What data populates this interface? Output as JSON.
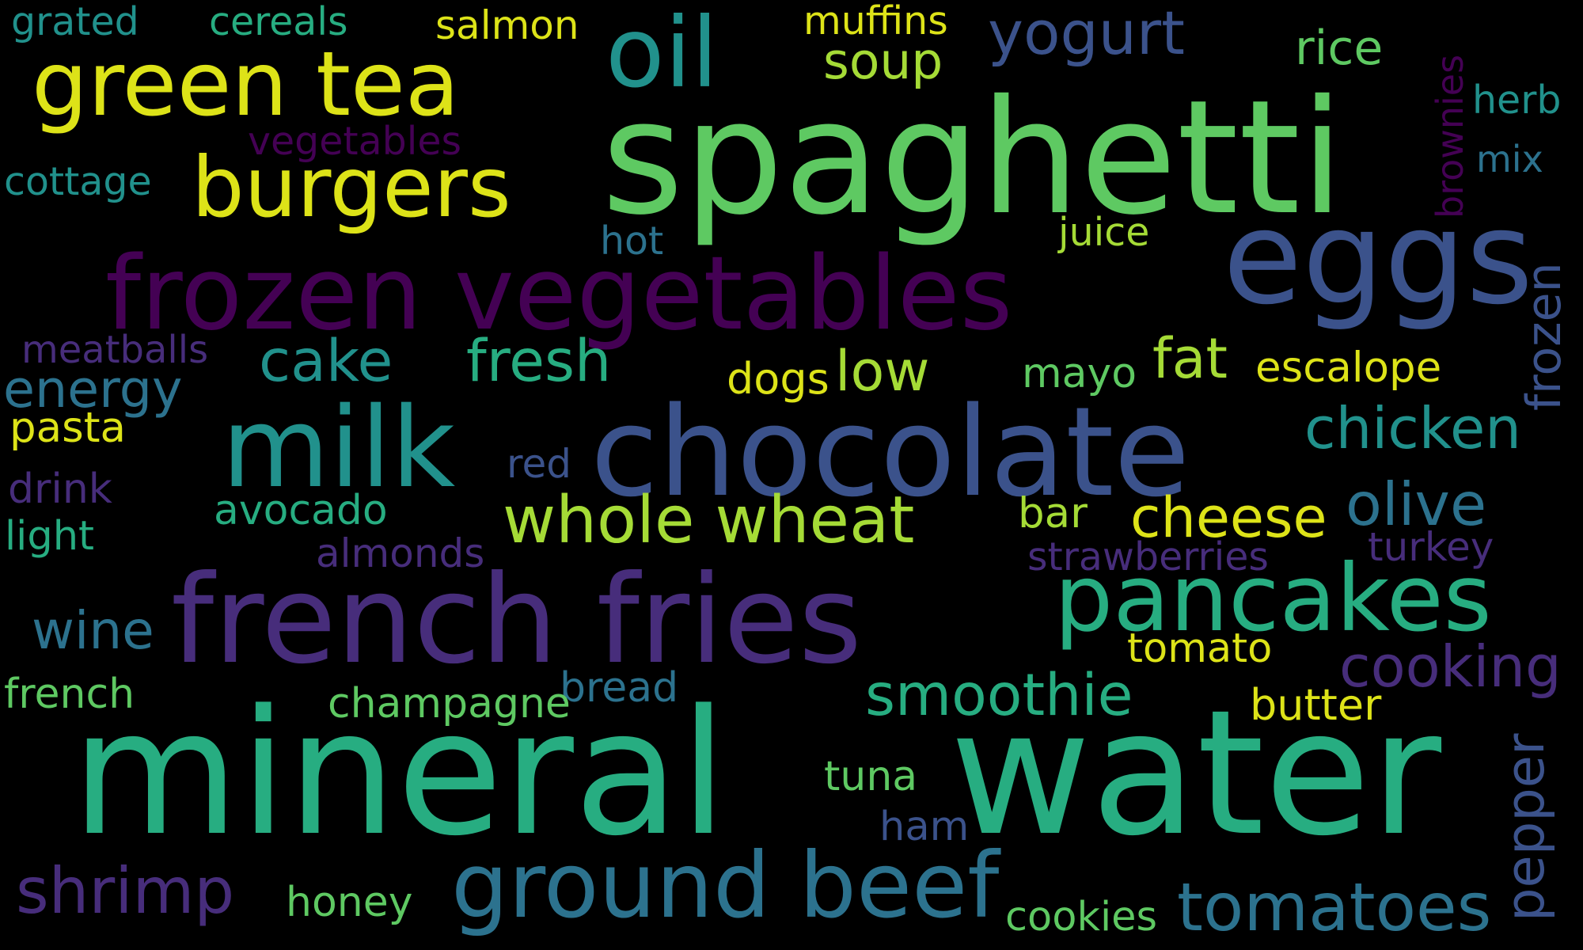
{
  "colors": {
    "background": "#000000",
    "palette": {
      "yellow": "#dde318",
      "lime": "#a5db36",
      "green": "#5ec962",
      "teal_green": "#27ad81",
      "teal": "#21918c",
      "blue_teal": "#2c728e",
      "blue": "#3b528b",
      "indigo": "#472d7b",
      "purple": "#440154"
    }
  },
  "words": [
    {
      "text": "grated",
      "color": "#21918c"
    },
    {
      "text": "cereals",
      "color": "#27ad81"
    },
    {
      "text": "salmon",
      "color": "#dde318"
    },
    {
      "text": "muffins",
      "color": "#dde318"
    },
    {
      "text": "soup",
      "color": "#a5db36"
    },
    {
      "text": "yogurt",
      "color": "#3b528b"
    },
    {
      "text": "rice",
      "color": "#5ec962"
    },
    {
      "text": "brownies",
      "color": "#440154"
    },
    {
      "text": "herb",
      "color": "#21918c"
    },
    {
      "text": "green tea",
      "color": "#dde318"
    },
    {
      "text": "oil",
      "color": "#21918c"
    },
    {
      "text": "spaghetti",
      "color": "#5ec962"
    },
    {
      "text": "mix",
      "color": "#2c728e"
    },
    {
      "text": "vegetables",
      "color": "#440154"
    },
    {
      "text": "cottage",
      "color": "#21918c"
    },
    {
      "text": "burgers",
      "color": "#dde318"
    },
    {
      "text": "hot",
      "color": "#2c728e"
    },
    {
      "text": "juice",
      "color": "#a5db36"
    },
    {
      "text": "eggs",
      "color": "#3b528b"
    },
    {
      "text": "frozen",
      "color": "#3b528b"
    },
    {
      "text": "frozen vegetables",
      "color": "#440154"
    },
    {
      "text": "meatballs",
      "color": "#472d7b"
    },
    {
      "text": "cake",
      "color": "#21918c"
    },
    {
      "text": "fresh",
      "color": "#27ad81"
    },
    {
      "text": "low",
      "color": "#a5db36"
    },
    {
      "text": "dogs",
      "color": "#dde318"
    },
    {
      "text": "mayo",
      "color": "#5ec962"
    },
    {
      "text": "fat",
      "color": "#a5db36"
    },
    {
      "text": "escalope",
      "color": "#dde318"
    },
    {
      "text": "energy",
      "color": "#2c728e"
    },
    {
      "text": "pasta",
      "color": "#dde318"
    },
    {
      "text": "milk",
      "color": "#21918c"
    },
    {
      "text": "chocolate",
      "color": "#3b528b"
    },
    {
      "text": "chicken",
      "color": "#21918c"
    },
    {
      "text": "red",
      "color": "#3b528b"
    },
    {
      "text": "drink",
      "color": "#472d7b"
    },
    {
      "text": "olive",
      "color": "#2c728e"
    },
    {
      "text": "avocado",
      "color": "#27ad81"
    },
    {
      "text": "whole wheat",
      "color": "#a5db36"
    },
    {
      "text": "bar",
      "color": "#a5db36"
    },
    {
      "text": "cheese",
      "color": "#dde318"
    },
    {
      "text": "light",
      "color": "#27ad81"
    },
    {
      "text": "almonds",
      "color": "#472d7b"
    },
    {
      "text": "strawberries",
      "color": "#472d7b"
    },
    {
      "text": "turkey",
      "color": "#472d7b"
    },
    {
      "text": "french fries",
      "color": "#472d7b"
    },
    {
      "text": "pancakes",
      "color": "#27ad81"
    },
    {
      "text": "wine",
      "color": "#2c728e"
    },
    {
      "text": "tomato",
      "color": "#dde318"
    },
    {
      "text": "cooking",
      "color": "#472d7b"
    },
    {
      "text": "french",
      "color": "#5ec962"
    },
    {
      "text": "bread",
      "color": "#2c728e"
    },
    {
      "text": "champagne",
      "color": "#5ec962"
    },
    {
      "text": "smoothie",
      "color": "#27ad81"
    },
    {
      "text": "butter",
      "color": "#dde318"
    },
    {
      "text": "pepper",
      "color": "#3b528b"
    },
    {
      "text": "mineral",
      "color": "#27ad81"
    },
    {
      "text": "water",
      "color": "#27ad81"
    },
    {
      "text": "tuna",
      "color": "#5ec962"
    },
    {
      "text": "ham",
      "color": "#3b528b"
    },
    {
      "text": "shrimp",
      "color": "#472d7b"
    },
    {
      "text": "honey",
      "color": "#5ec962"
    },
    {
      "text": "ground beef",
      "color": "#2c728e"
    },
    {
      "text": "cookies",
      "color": "#5ec962"
    },
    {
      "text": "tomatoes",
      "color": "#2c728e"
    }
  ]
}
